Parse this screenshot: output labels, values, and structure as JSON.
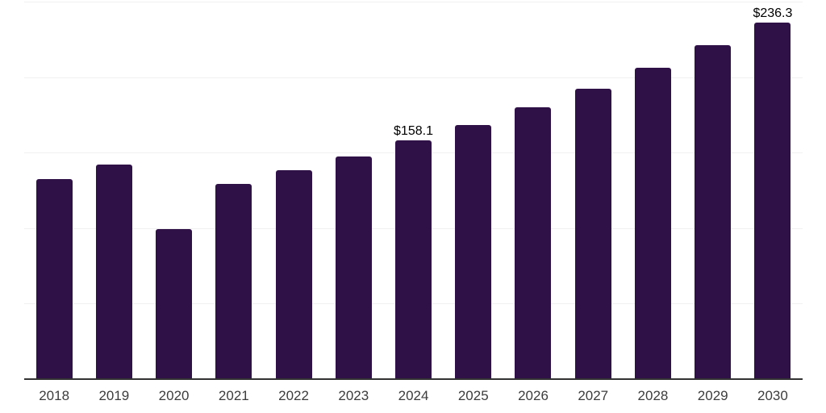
{
  "chart": {
    "background": "#ffffff",
    "bar_color": "#301147",
    "axis_color": "#333333",
    "gridline_color": "#f0f0f0",
    "data_label_color": "#000000",
    "tick_label_color": "#3c3c3c"
  },
  "chart_data": {
    "type": "bar",
    "title": "",
    "xlabel": "",
    "ylabel": "",
    "categories": [
      "2018",
      "2019",
      "2020",
      "2021",
      "2022",
      "2023",
      "2024",
      "2025",
      "2026",
      "2027",
      "2028",
      "2029",
      "2030"
    ],
    "values": [
      132.3,
      141.9,
      99.4,
      129.1,
      138.2,
      147.7,
      158.1,
      168.5,
      180.1,
      192.4,
      206.2,
      221.1,
      236.3
    ],
    "data_labels": [
      "",
      "",
      "",
      "",
      "",
      "",
      "$158.1",
      "",
      "",
      "",
      "",
      "",
      "$236.3"
    ],
    "ylim": [
      0,
      250
    ],
    "gridline_step": 50,
    "grid": true,
    "legend": false,
    "y_axis_labels_visible": false
  }
}
